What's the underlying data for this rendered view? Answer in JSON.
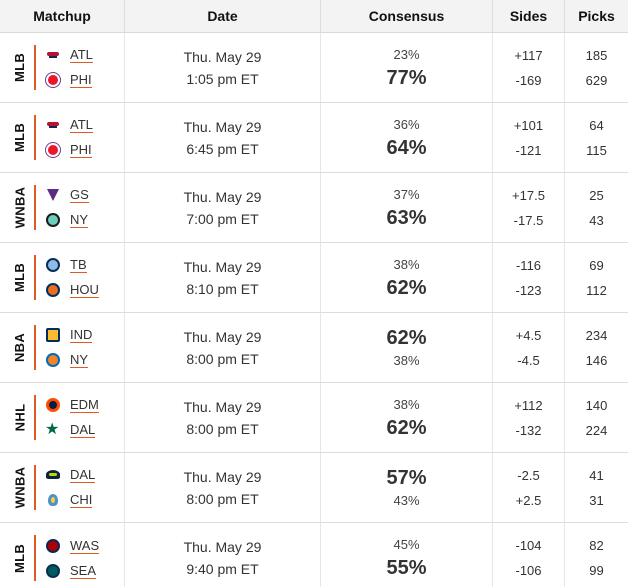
{
  "header": {
    "matchup": "Matchup",
    "date": "Date",
    "consensus": "Consensus",
    "sides": "Sides",
    "picks": "Picks"
  },
  "colors": {
    "accent": "#e05a23",
    "header_bg": "#f3f3f3",
    "divider": "#dcdcdc"
  },
  "rows": [
    {
      "league": "MLB",
      "teams": [
        {
          "abbr": "ATL",
          "icon": "braves-logo-icon"
        },
        {
          "abbr": "PHI",
          "icon": "phillies-logo-icon"
        }
      ],
      "date": "Thu. May 29",
      "time": "1:05 pm ET",
      "consensus": [
        "23%",
        "77%"
      ],
      "highlight": 1,
      "sides": [
        "+117",
        "-169"
      ],
      "picks": [
        "185",
        "629"
      ]
    },
    {
      "league": "MLB",
      "teams": [
        {
          "abbr": "ATL",
          "icon": "braves-logo-icon"
        },
        {
          "abbr": "PHI",
          "icon": "phillies-logo-icon"
        }
      ],
      "date": "Thu. May 29",
      "time": "6:45 pm ET",
      "consensus": [
        "36%",
        "64%"
      ],
      "highlight": 1,
      "sides": [
        "+101",
        "-121"
      ],
      "picks": [
        "64",
        "115"
      ]
    },
    {
      "league": "WNBA",
      "teams": [
        {
          "abbr": "GS",
          "icon": "valkyries-logo-icon"
        },
        {
          "abbr": "NY",
          "icon": "liberty-logo-icon"
        }
      ],
      "date": "Thu. May 29",
      "time": "7:00 pm ET",
      "consensus": [
        "37%",
        "63%"
      ],
      "highlight": 1,
      "sides": [
        "+17.5",
        "-17.5"
      ],
      "picks": [
        "25",
        "43"
      ]
    },
    {
      "league": "MLB",
      "teams": [
        {
          "abbr": "TB",
          "icon": "rays-logo-icon"
        },
        {
          "abbr": "HOU",
          "icon": "astros-logo-icon"
        }
      ],
      "date": "Thu. May 29",
      "time": "8:10 pm ET",
      "consensus": [
        "38%",
        "62%"
      ],
      "highlight": 1,
      "sides": [
        "-116",
        "-123"
      ],
      "picks": [
        "69",
        "112"
      ]
    },
    {
      "league": "NBA",
      "teams": [
        {
          "abbr": "IND",
          "icon": "pacers-logo-icon"
        },
        {
          "abbr": "NY",
          "icon": "knicks-logo-icon"
        }
      ],
      "date": "Thu. May 29",
      "time": "8:00 pm ET",
      "consensus": [
        "62%",
        "38%"
      ],
      "highlight": 0,
      "sides": [
        "+4.5",
        "-4.5"
      ],
      "picks": [
        "234",
        "146"
      ]
    },
    {
      "league": "NHL",
      "teams": [
        {
          "abbr": "EDM",
          "icon": "oilers-logo-icon"
        },
        {
          "abbr": "DAL",
          "icon": "stars-logo-icon"
        }
      ],
      "date": "Thu. May 29",
      "time": "8:00 pm ET",
      "consensus": [
        "38%",
        "62%"
      ],
      "highlight": 1,
      "sides": [
        "+112",
        "-132"
      ],
      "picks": [
        "140",
        "224"
      ]
    },
    {
      "league": "WNBA",
      "teams": [
        {
          "abbr": "DAL",
          "icon": "wings-logo-icon"
        },
        {
          "abbr": "CHI",
          "icon": "sky-logo-icon"
        }
      ],
      "date": "Thu. May 29",
      "time": "8:00 pm ET",
      "consensus": [
        "57%",
        "43%"
      ],
      "highlight": 0,
      "sides": [
        "-2.5",
        "+2.5"
      ],
      "picks": [
        "41",
        "31"
      ]
    },
    {
      "league": "MLB",
      "teams": [
        {
          "abbr": "WAS",
          "icon": "nationals-logo-icon"
        },
        {
          "abbr": "SEA",
          "icon": "mariners-logo-icon"
        }
      ],
      "date": "Thu. May 29",
      "time": "9:40 pm ET",
      "consensus": [
        "45%",
        "55%"
      ],
      "highlight": 1,
      "sides": [
        "-104",
        "-106"
      ],
      "picks": [
        "82",
        "99"
      ]
    }
  ]
}
